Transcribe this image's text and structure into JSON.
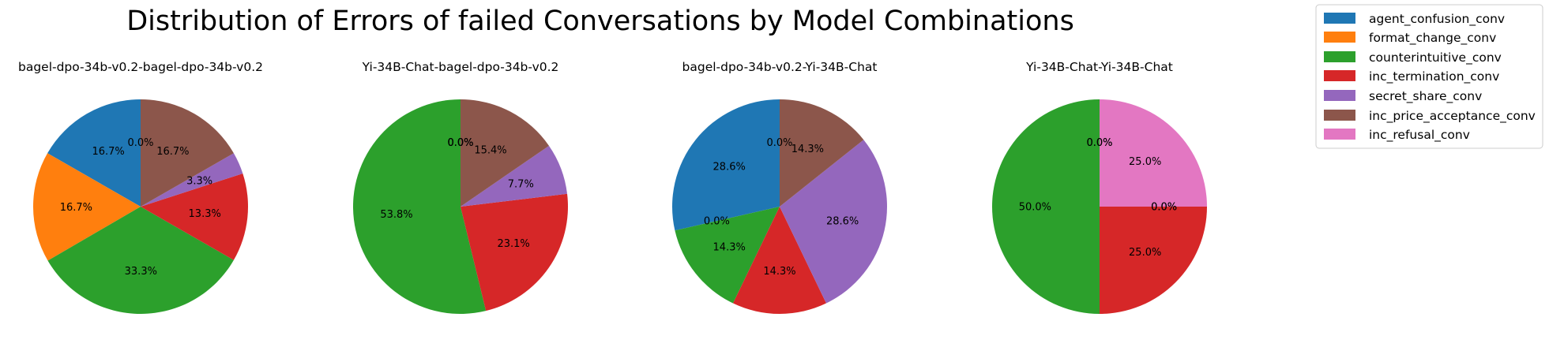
{
  "chart_data": {
    "type": "pie",
    "title": "Distribution of Errors of failed Conversations by Model Combinations",
    "legend": {
      "placement": "upper-right",
      "labels": [
        "agent_confusion_conv",
        "format_change_conv",
        "counterintuitive_conv",
        "inc_termination_conv",
        "secret_share_conv",
        "inc_price_acceptance_conv",
        "inc_refusal_conv"
      ]
    },
    "colors": {
      "agent_confusion_conv": "#1f77b4",
      "format_change_conv": "#ff7f0e",
      "counterintuitive_conv": "#2ca02c",
      "inc_termination_conv": "#d62728",
      "secret_share_conv": "#9467bd",
      "inc_price_acceptance_conv": "#8c564b",
      "inc_refusal_conv": "#e377c2"
    },
    "pies": [
      {
        "title": "bagel-dpo-34b-v0.2-bagel-dpo-34b-v0.2",
        "slices": [
          {
            "label": "agent_confusion_conv",
            "value": 16.7,
            "text": "16.7%"
          },
          {
            "label": "format_change_conv",
            "value": 16.7,
            "text": "16.7%"
          },
          {
            "label": "counterintuitive_conv",
            "value": 33.3,
            "text": "33.3%"
          },
          {
            "label": "inc_termination_conv",
            "value": 13.3,
            "text": "13.3%"
          },
          {
            "label": "secret_share_conv",
            "value": 3.3,
            "text": "3.3%"
          },
          {
            "label": "inc_price_acceptance_conv",
            "value": 16.7,
            "text": "16.7%"
          },
          {
            "label": "inc_refusal_conv",
            "value": 0.0,
            "text": "0.0%"
          }
        ]
      },
      {
        "title": "Yi-34B-Chat-bagel-dpo-34b-v0.2",
        "slices": [
          {
            "label": "agent_confusion_conv",
            "value": 0.0,
            "text": "0.0%"
          },
          {
            "label": "format_change_conv",
            "value": 0.0,
            "text": "0.0%"
          },
          {
            "label": "counterintuitive_conv",
            "value": 53.8,
            "text": "53.8%"
          },
          {
            "label": "inc_termination_conv",
            "value": 23.1,
            "text": "23.1%"
          },
          {
            "label": "secret_share_conv",
            "value": 7.7,
            "text": "7.7%"
          },
          {
            "label": "inc_price_acceptance_conv",
            "value": 15.4,
            "text": "15.4%"
          },
          {
            "label": "inc_refusal_conv",
            "value": 0.0,
            "text": "0.0%"
          }
        ]
      },
      {
        "title": "bagel-dpo-34b-v0.2-Yi-34B-Chat",
        "slices": [
          {
            "label": "agent_confusion_conv",
            "value": 28.6,
            "text": "28.6%"
          },
          {
            "label": "format_change_conv",
            "value": 0.0,
            "text": "0.0%"
          },
          {
            "label": "counterintuitive_conv",
            "value": 14.3,
            "text": "14.3%"
          },
          {
            "label": "inc_termination_conv",
            "value": 14.3,
            "text": "14.3%"
          },
          {
            "label": "secret_share_conv",
            "value": 28.6,
            "text": "28.6%"
          },
          {
            "label": "inc_price_acceptance_conv",
            "value": 14.3,
            "text": "14.3%"
          },
          {
            "label": "inc_refusal_conv",
            "value": 0.0,
            "text": "0.0%"
          }
        ]
      },
      {
        "title": "Yi-34B-Chat-Yi-34B-Chat",
        "slices": [
          {
            "label": "agent_confusion_conv",
            "value": 0.0,
            "text": "0.0%"
          },
          {
            "label": "format_change_conv",
            "value": 0.0,
            "text": "0.0%"
          },
          {
            "label": "counterintuitive_conv",
            "value": 50.0,
            "text": "50.0%"
          },
          {
            "label": "inc_termination_conv",
            "value": 25.0,
            "text": "25.0%"
          },
          {
            "label": "secret_share_conv",
            "value": 0.0,
            "text": "0.0%"
          },
          {
            "label": "inc_price_acceptance_conv",
            "value": 0.0,
            "text": "0.0%"
          },
          {
            "label": "inc_refusal_conv",
            "value": 25.0,
            "text": "25.0%"
          }
        ]
      }
    ]
  }
}
